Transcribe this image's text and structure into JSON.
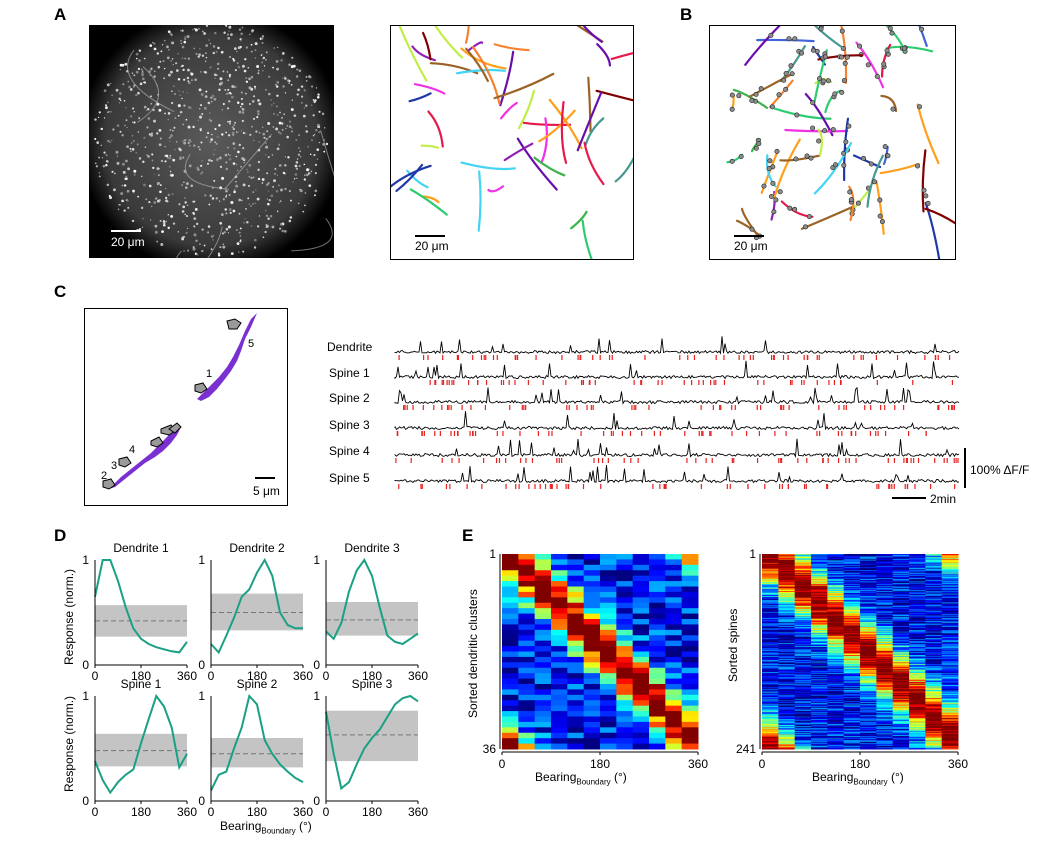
{
  "panels": {
    "A": {
      "label": "A",
      "scale_bar_left": "20 μm",
      "scale_bar_right": "20 μm"
    },
    "B": {
      "label": "B",
      "scale_bar": "20 μm"
    },
    "C": {
      "label": "C",
      "scale_bar": "5 μm",
      "spine_numbers": [
        "1",
        "2",
        "3",
        "4",
        "5"
      ],
      "trace_labels": [
        "Dendrite",
        "Spine 1",
        "Spine 2",
        "Spine 3",
        "Spine 4",
        "Spine 5"
      ],
      "scale_dff": "100% ΔF/F",
      "scale_time": "2min"
    },
    "D": {
      "label": "D",
      "titles": [
        "Dendrite 1",
        "Dendrite 2",
        "Dendrite 3",
        "Spine 1",
        "Spine 2",
        "Spine 3"
      ],
      "ylabel": "Response (norm.)",
      "xlabel_main": "Bearing",
      "xlabel_sub": "Boundary",
      "xlabel_unit": " (°)",
      "xticks": [
        "0",
        "180",
        "360"
      ],
      "yticks": [
        "0",
        "1"
      ]
    },
    "E": {
      "label": "E",
      "left_ylabel": "Sorted dendritic clusters",
      "left_yticks": [
        "1",
        "36"
      ],
      "right_ylabel": "Sorted spines",
      "right_yticks": [
        "1",
        "241"
      ],
      "xticks": [
        "0",
        "180",
        "360"
      ],
      "xlabel_main": "Bearing",
      "xlabel_sub": "Boundary",
      "xlabel_unit": " (°)"
    }
  },
  "chart_data": [
    {
      "type": "line",
      "title": "Dendrite 1",
      "x": [
        0,
        30,
        60,
        90,
        120,
        150,
        180,
        210,
        240,
        270,
        300,
        330,
        360
      ],
      "values": [
        0.65,
        1.0,
        1.0,
        0.8,
        0.55,
        0.35,
        0.25,
        0.2,
        0.17,
        0.15,
        0.13,
        0.12,
        0.22
      ],
      "shuffle_mean": 0.42,
      "shuffle_band": [
        0.27,
        0.57
      ],
      "xlim": [
        0,
        360
      ],
      "ylim": [
        0,
        1
      ]
    },
    {
      "type": "line",
      "title": "Dendrite 2",
      "x": [
        0,
        30,
        60,
        90,
        120,
        150,
        180,
        210,
        240,
        270,
        300,
        330,
        360
      ],
      "values": [
        0.2,
        0.12,
        0.28,
        0.45,
        0.65,
        0.72,
        0.88,
        1.0,
        0.85,
        0.5,
        0.38,
        0.35,
        0.35
      ],
      "shuffle_mean": 0.5,
      "shuffle_band": [
        0.33,
        0.68
      ],
      "xlim": [
        0,
        360
      ],
      "ylim": [
        0,
        1
      ]
    },
    {
      "type": "line",
      "title": "Dendrite 3",
      "x": [
        0,
        30,
        60,
        90,
        120,
        150,
        180,
        210,
        240,
        270,
        300,
        330,
        360
      ],
      "values": [
        0.32,
        0.25,
        0.4,
        0.7,
        0.9,
        1.0,
        0.85,
        0.55,
        0.28,
        0.22,
        0.2,
        0.25,
        0.3
      ],
      "shuffle_mean": 0.43,
      "shuffle_band": [
        0.28,
        0.6
      ],
      "xlim": [
        0,
        360
      ],
      "ylim": [
        0,
        1
      ]
    },
    {
      "type": "line",
      "title": "Spine 1",
      "x": [
        0,
        30,
        60,
        90,
        120,
        150,
        180,
        210,
        240,
        270,
        300,
        330,
        360
      ],
      "values": [
        0.38,
        0.2,
        0.08,
        0.18,
        0.25,
        0.3,
        0.55,
        0.78,
        1.0,
        0.9,
        0.7,
        0.32,
        0.45
      ],
      "shuffle_mean": 0.48,
      "shuffle_band": [
        0.33,
        0.64
      ],
      "xlim": [
        0,
        360
      ],
      "ylim": [
        0,
        1
      ]
    },
    {
      "type": "line",
      "title": "Spine 2",
      "x": [
        0,
        30,
        60,
        90,
        120,
        150,
        180,
        210,
        240,
        270,
        300,
        330,
        360
      ],
      "values": [
        0.1,
        0.25,
        0.28,
        0.5,
        0.7,
        1.0,
        0.92,
        0.58,
        0.45,
        0.35,
        0.28,
        0.22,
        0.18
      ],
      "shuffle_mean": 0.45,
      "shuffle_band": [
        0.32,
        0.6
      ],
      "xlim": [
        0,
        360
      ],
      "ylim": [
        0,
        1
      ]
    },
    {
      "type": "line",
      "title": "Spine 3",
      "x": [
        0,
        30,
        60,
        90,
        120,
        150,
        180,
        210,
        240,
        270,
        300,
        330,
        360
      ],
      "values": [
        0.85,
        0.45,
        0.12,
        0.18,
        0.35,
        0.5,
        0.6,
        0.68,
        0.8,
        0.92,
        0.98,
        1.0,
        0.95
      ],
      "shuffle_mean": 0.63,
      "shuffle_band": [
        0.38,
        0.86
      ],
      "xlim": [
        0,
        360
      ],
      "ylim": [
        0,
        1
      ]
    },
    {
      "type": "heatmap",
      "title": "Sorted dendritic clusters",
      "rows": 36,
      "columns": 12,
      "xlim": [
        0,
        360
      ],
      "ytick_labels": [
        "1",
        "36"
      ],
      "xtick_labels": [
        "0",
        "180",
        "360"
      ]
    },
    {
      "type": "heatmap",
      "title": "Sorted spines",
      "rows": 241,
      "columns": 12,
      "xlim": [
        0,
        360
      ],
      "ytick_labels": [
        "1",
        "241"
      ],
      "xtick_labels": [
        "0",
        "180",
        "360"
      ]
    }
  ],
  "colors": {
    "trace_green": "#1aa085",
    "shuffle_band": "#c4c4c4",
    "event_red": "#e8201e",
    "dendrite_purple": "#7a2fd0",
    "spine_gray": "#9a9a9a"
  }
}
